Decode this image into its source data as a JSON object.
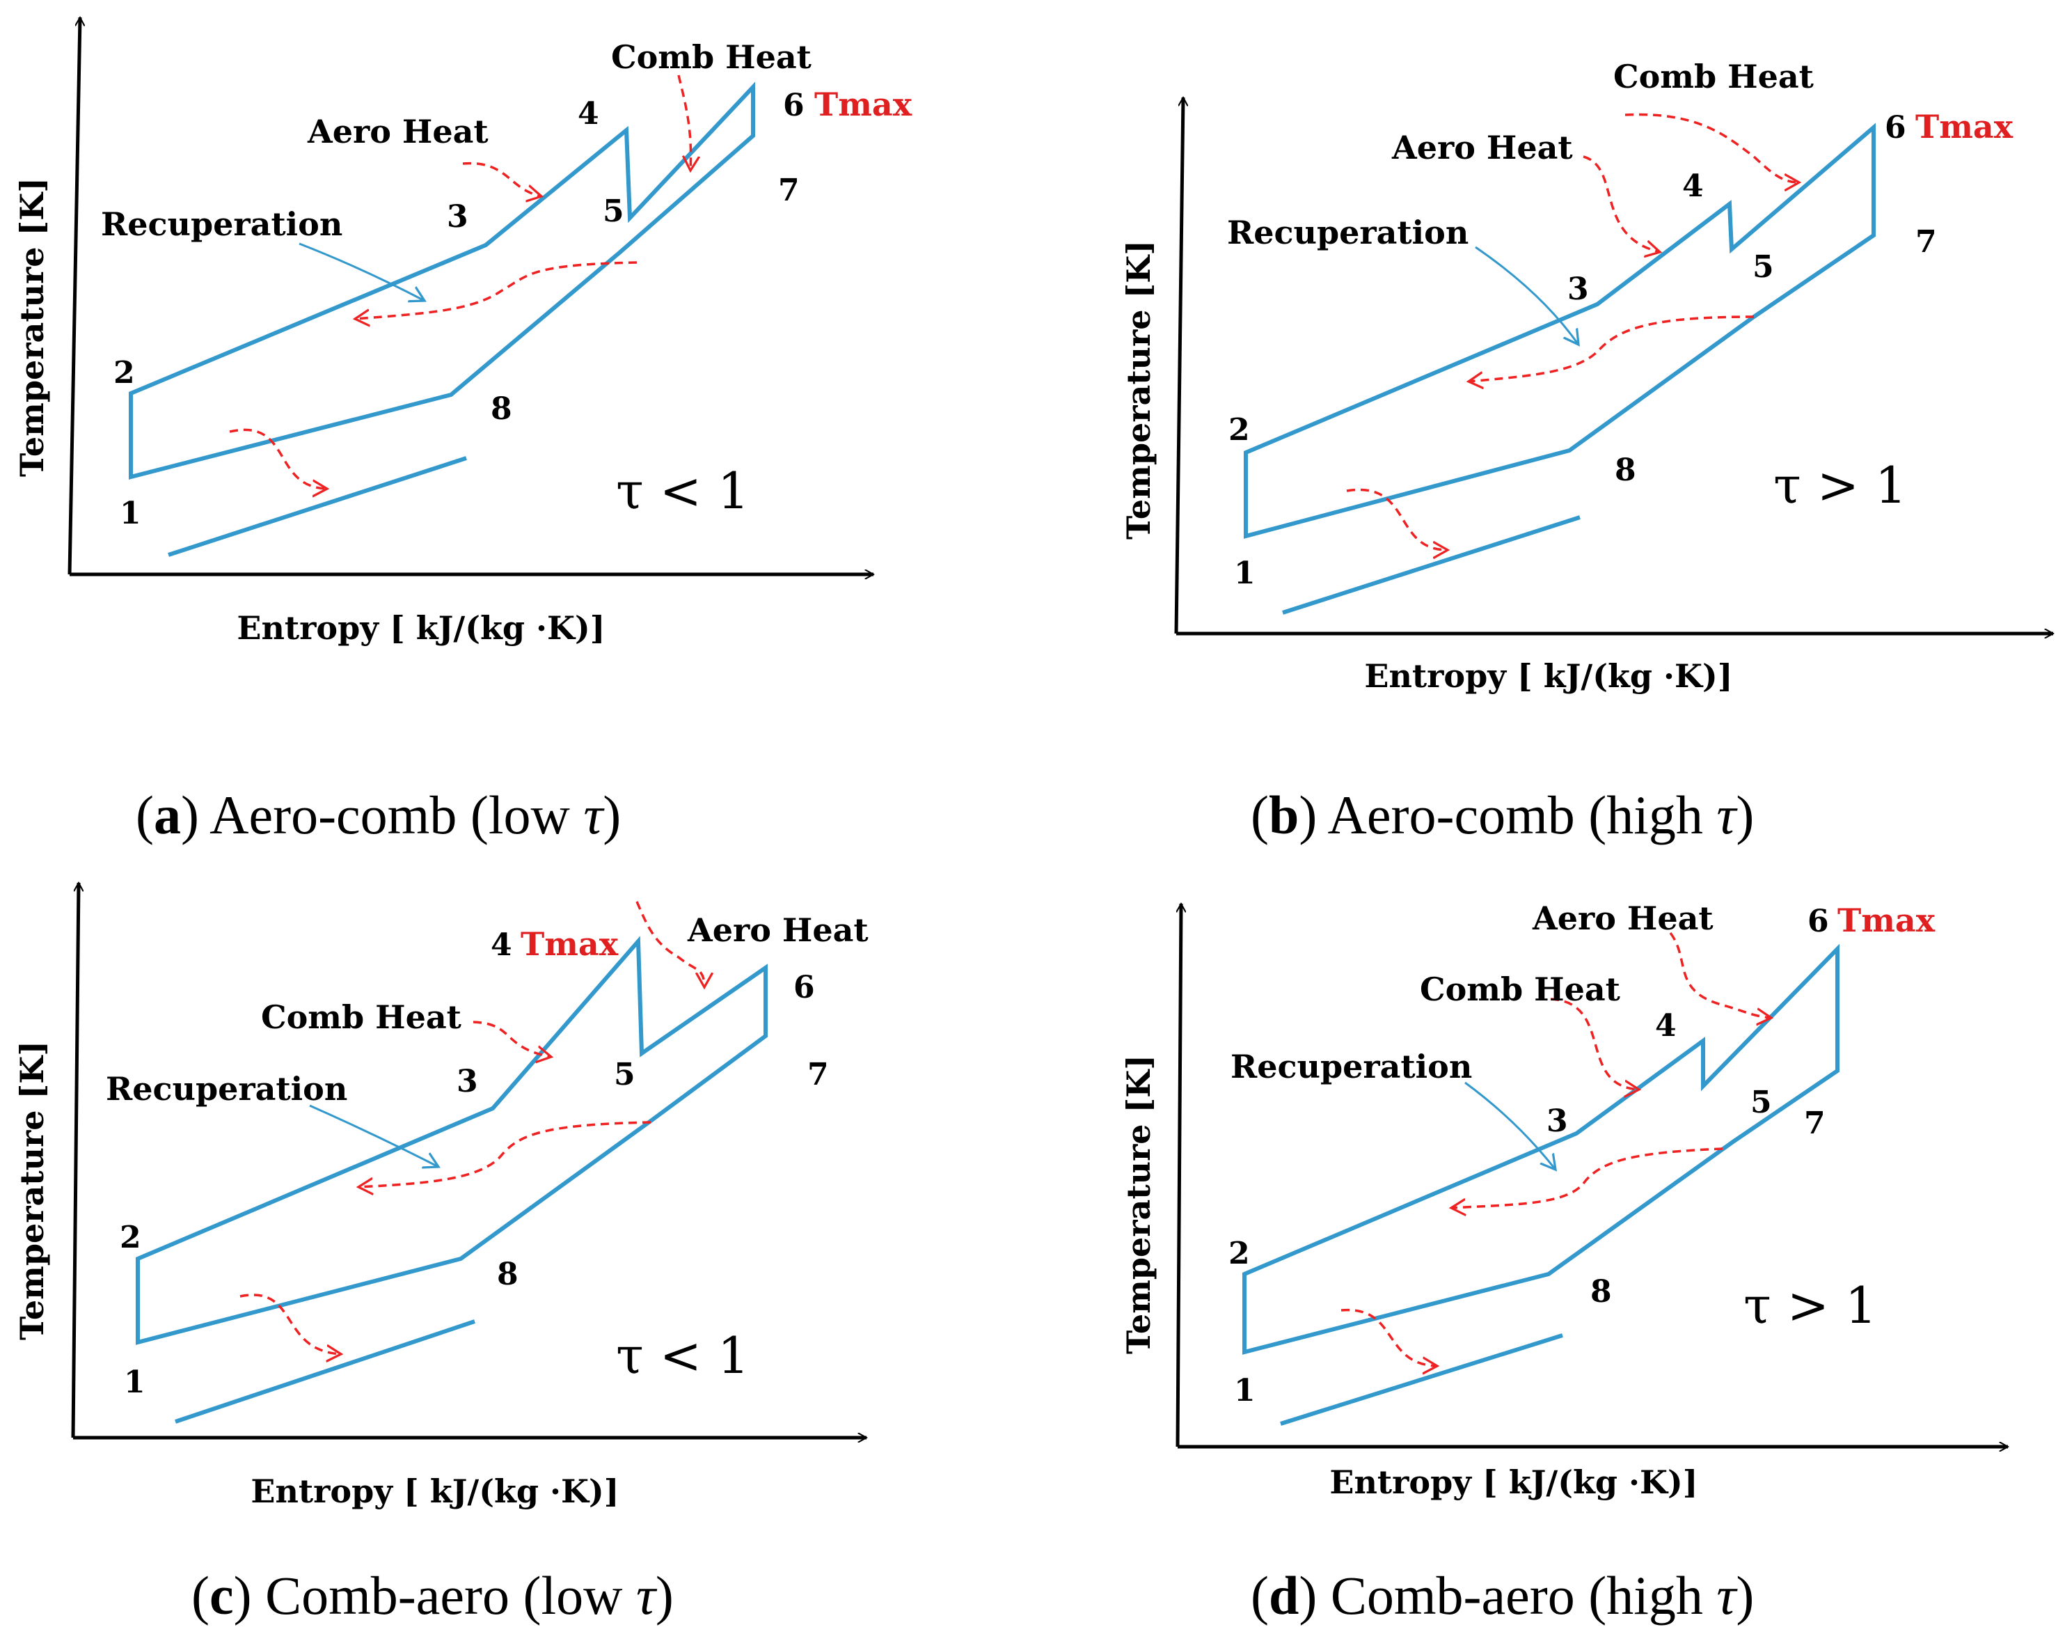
{
  "colors": {
    "cycle": "#3399cc",
    "heat_arrow": "#ee2222",
    "tmax": "#e02020",
    "ink": "#000000"
  },
  "axes": {
    "ylabel": "Temperature [K]",
    "xlabel": "Entropy [ kJ/(kg ·K)]"
  },
  "panels": [
    {
      "id": "a",
      "caption": {
        "letter": "a",
        "text": "Aero-comb (low",
        "tau": "τ"
      },
      "tau_relation": "τ < 1",
      "state_labels": [
        "1",
        "2",
        "3",
        "4",
        "5",
        "6",
        "7",
        "8"
      ],
      "tmax_label": "Tmax",
      "heat_labels": {
        "first": "Aero Heat",
        "second": "Comb Heat",
        "recuperation": "Recuperation"
      }
    },
    {
      "id": "b",
      "caption": {
        "letter": "b",
        "text": "Aero-comb (high",
        "tau": "τ"
      },
      "tau_relation": "τ > 1",
      "state_labels": [
        "1",
        "2",
        "3",
        "4",
        "5",
        "6",
        "7",
        "8"
      ],
      "tmax_label": "Tmax",
      "heat_labels": {
        "first": "Aero Heat",
        "second": "Comb Heat",
        "recuperation": "Recuperation"
      }
    },
    {
      "id": "c",
      "caption": {
        "letter": "c",
        "text": "Comb-aero (low",
        "tau": "τ"
      },
      "tau_relation": "τ < 1",
      "state_labels": [
        "1",
        "2",
        "3",
        "4",
        "5",
        "6",
        "7",
        "8"
      ],
      "tmax_label": "Tmax",
      "heat_labels": {
        "first": "Comb Heat",
        "second": "Aero Heat",
        "recuperation": "Recuperation"
      }
    },
    {
      "id": "d",
      "caption": {
        "letter": "d",
        "text": "Comb-aero (high",
        "tau": "τ"
      },
      "tau_relation": "τ > 1",
      "state_labels": [
        "1",
        "2",
        "3",
        "4",
        "5",
        "6",
        "7",
        "8"
      ],
      "tmax_label": "Tmax",
      "heat_labels": {
        "first": "Comb Heat",
        "second": "Aero Heat",
        "recuperation": "Recuperation"
      }
    }
  ]
}
